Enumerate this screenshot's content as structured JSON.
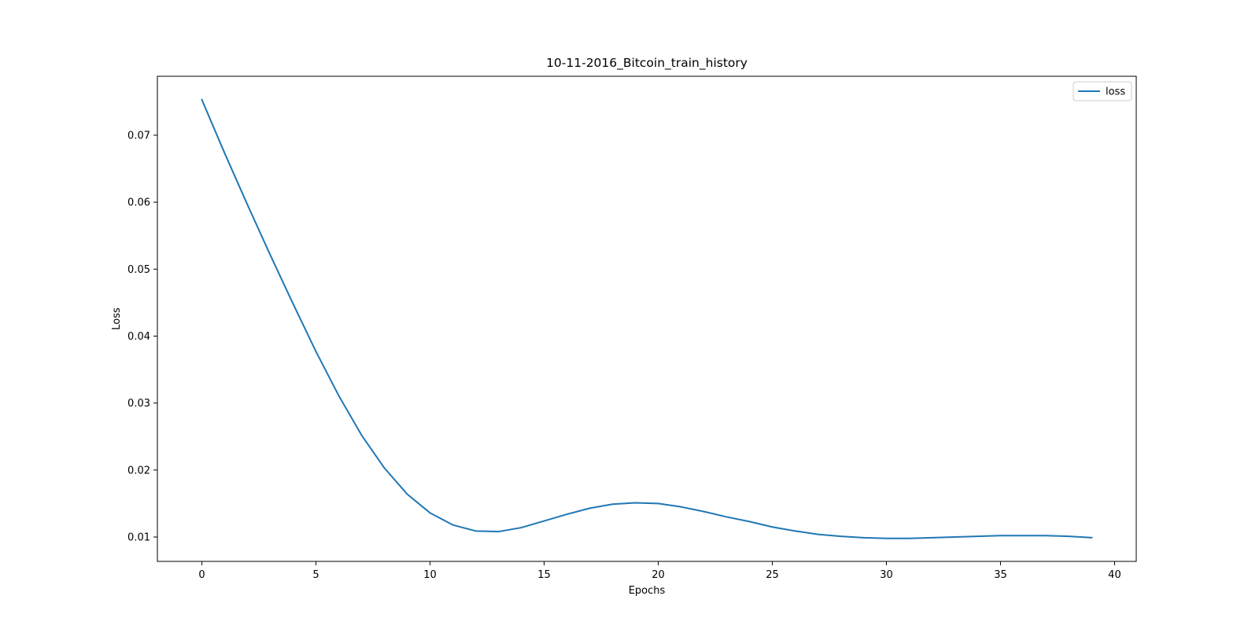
{
  "chart_data": {
    "type": "line",
    "title": "10-11-2016_Bitcoin_train_history",
    "xlabel": "Epochs",
    "ylabel": "Loss",
    "xlim": [
      -1.95,
      40.95
    ],
    "ylim": [
      0.00636,
      0.0788
    ],
    "xticks": [
      0,
      5,
      10,
      15,
      20,
      25,
      30,
      35,
      40
    ],
    "xtick_labels": [
      "0",
      "5",
      "10",
      "15",
      "20",
      "25",
      "30",
      "35",
      "40"
    ],
    "yticks": [
      0.01,
      0.02,
      0.03,
      0.04,
      0.05,
      0.06,
      0.07
    ],
    "ytick_labels": [
      "0.01",
      "0.02",
      "0.03",
      "0.04",
      "0.05",
      "0.06",
      "0.07"
    ],
    "grid": false,
    "legend_position": "upper right",
    "series": [
      {
        "name": "loss",
        "color": "#1f77b4",
        "x": [
          0,
          1,
          2,
          3,
          4,
          5,
          6,
          7,
          8,
          9,
          10,
          11,
          12,
          13,
          14,
          15,
          16,
          17,
          18,
          19,
          20,
          21,
          22,
          23,
          24,
          25,
          26,
          27,
          28,
          29,
          30,
          31,
          32,
          33,
          34,
          35,
          36,
          37,
          38,
          39
        ],
        "values": [
          0.0753,
          0.0673,
          0.0596,
          0.0521,
          0.0448,
          0.0377,
          0.0311,
          0.0252,
          0.0203,
          0.0164,
          0.0136,
          0.0118,
          0.0109,
          0.0108,
          0.0114,
          0.0124,
          0.0134,
          0.0143,
          0.0149,
          0.0151,
          0.015,
          0.0145,
          0.0138,
          0.013,
          0.0123,
          0.0115,
          0.0109,
          0.0104,
          0.0101,
          0.0099,
          0.0098,
          0.0098,
          0.0099,
          0.01,
          0.0101,
          0.0102,
          0.0102,
          0.0102,
          0.0101,
          0.0099
        ]
      }
    ]
  }
}
